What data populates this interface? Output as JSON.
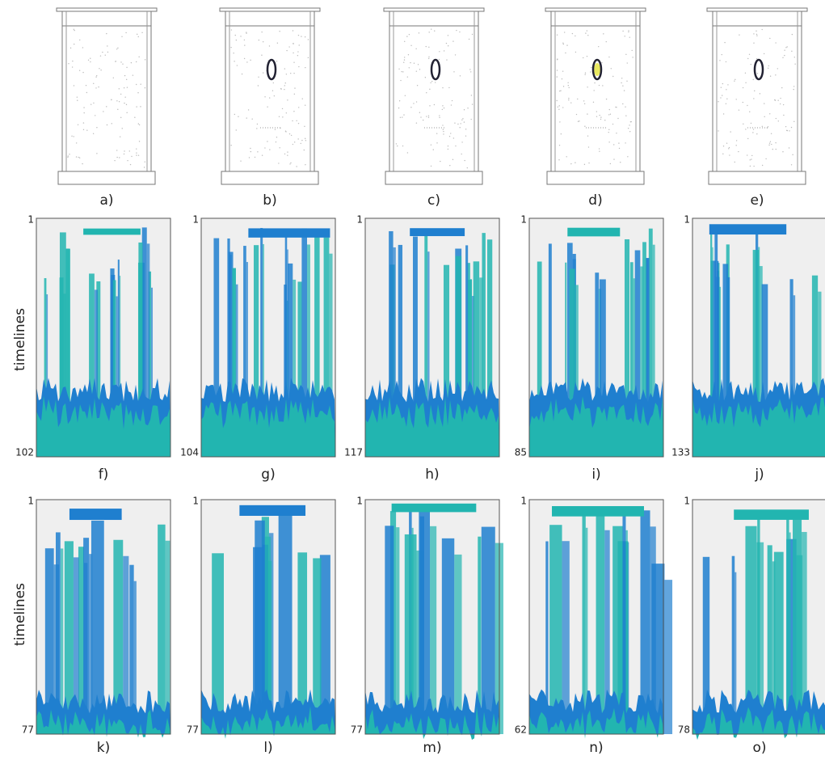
{
  "top_row": {
    "panels": [
      {
        "label": "a)",
        "object": false
      },
      {
        "label": "b)",
        "object": true
      },
      {
        "label": "c)",
        "object": true
      },
      {
        "label": "d)",
        "object": true
      },
      {
        "label": "e)",
        "object": true
      }
    ]
  },
  "heatmap_rows": [
    {
      "y_axis_label": "timelines",
      "panels": [
        {
          "label": "f)",
          "top": "1",
          "bottom": "102"
        },
        {
          "label": "g)",
          "top": "1",
          "bottom": "104"
        },
        {
          "label": "h)",
          "top": "1",
          "bottom": "117"
        },
        {
          "label": "i)",
          "top": "1",
          "bottom": "85"
        },
        {
          "label": "j)",
          "top": "1",
          "bottom": "133"
        }
      ]
    },
    {
      "y_axis_label": "timelines",
      "panels": [
        {
          "label": "k)",
          "top": "1",
          "bottom": "77"
        },
        {
          "label": "l)",
          "top": "1",
          "bottom": "77"
        },
        {
          "label": "m)",
          "top": "1",
          "bottom": "77"
        },
        {
          "label": "n)",
          "top": "1",
          "bottom": "62"
        },
        {
          "label": "o)",
          "top": "1",
          "bottom": "78"
        }
      ]
    }
  ]
}
